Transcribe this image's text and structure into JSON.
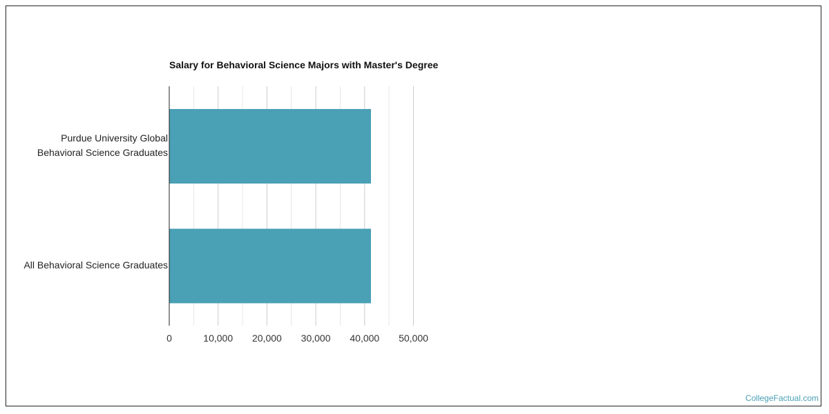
{
  "chart_data": {
    "type": "bar",
    "orientation": "horizontal",
    "title": "Salary for Behavioral Science Majors with Master's Degree",
    "categories": [
      [
        "Purdue University Global",
        "Behavioral Science Graduates"
      ],
      [
        "All Behavioral Science Graduates"
      ]
    ],
    "values": [
      41300,
      41300
    ],
    "xlim": [
      0,
      50000
    ],
    "x_ticks": [
      "0",
      "10,000",
      "20,000",
      "30,000",
      "40,000",
      "50,000"
    ],
    "grid": true,
    "bar_color": "#4aa0b5"
  },
  "watermark": "CollegeFactual.com"
}
